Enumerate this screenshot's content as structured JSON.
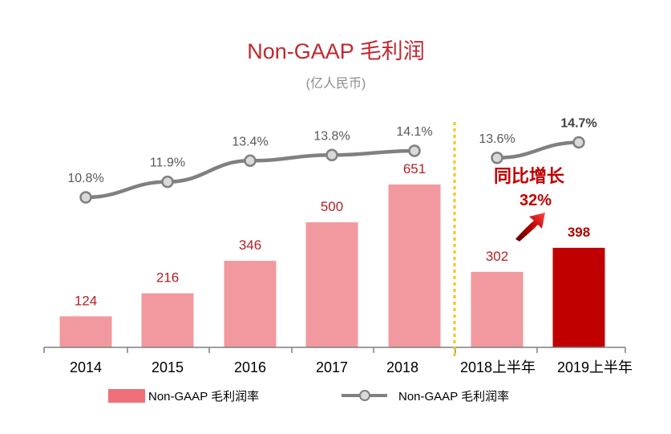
{
  "chart_data": {
    "type": "bar",
    "title": "Non-GAAP 毛利润",
    "subtitle": "(亿人民币)",
    "categories": [
      "2014",
      "2015",
      "2016",
      "2017",
      "2018",
      "2018上半年",
      "2019上半年"
    ],
    "series": [
      {
        "name": "Non-GAAP 毛利润率",
        "type": "bar",
        "values": [
          124,
          216,
          346,
          500,
          651,
          302,
          398
        ]
      },
      {
        "name": "Non-GAAP 毛利润率",
        "type": "line",
        "values": [
          10.8,
          11.9,
          13.4,
          13.8,
          14.1,
          13.6,
          14.7
        ],
        "labels": [
          "10.8%",
          "11.9%",
          "13.4%",
          "13.8%",
          "14.1%",
          "13.6%",
          "14.7%"
        ]
      }
    ],
    "ylim_bar": [
      0,
      780
    ],
    "ylim_line": [
      5,
      16
    ],
    "annotation": {
      "text": "同比增长",
      "value": "32%"
    },
    "colors": {
      "bar": "#f1999f",
      "bar_highlight": "#c00000",
      "line": "#808080",
      "marker_fill": "#d9d9d9",
      "divider": "#f5c518",
      "title": "#c0282e"
    },
    "legend": {
      "position": "bottom",
      "bar_label": "Non-GAAP 毛利润率",
      "line_label": "Non-GAAP 毛利润率"
    }
  }
}
